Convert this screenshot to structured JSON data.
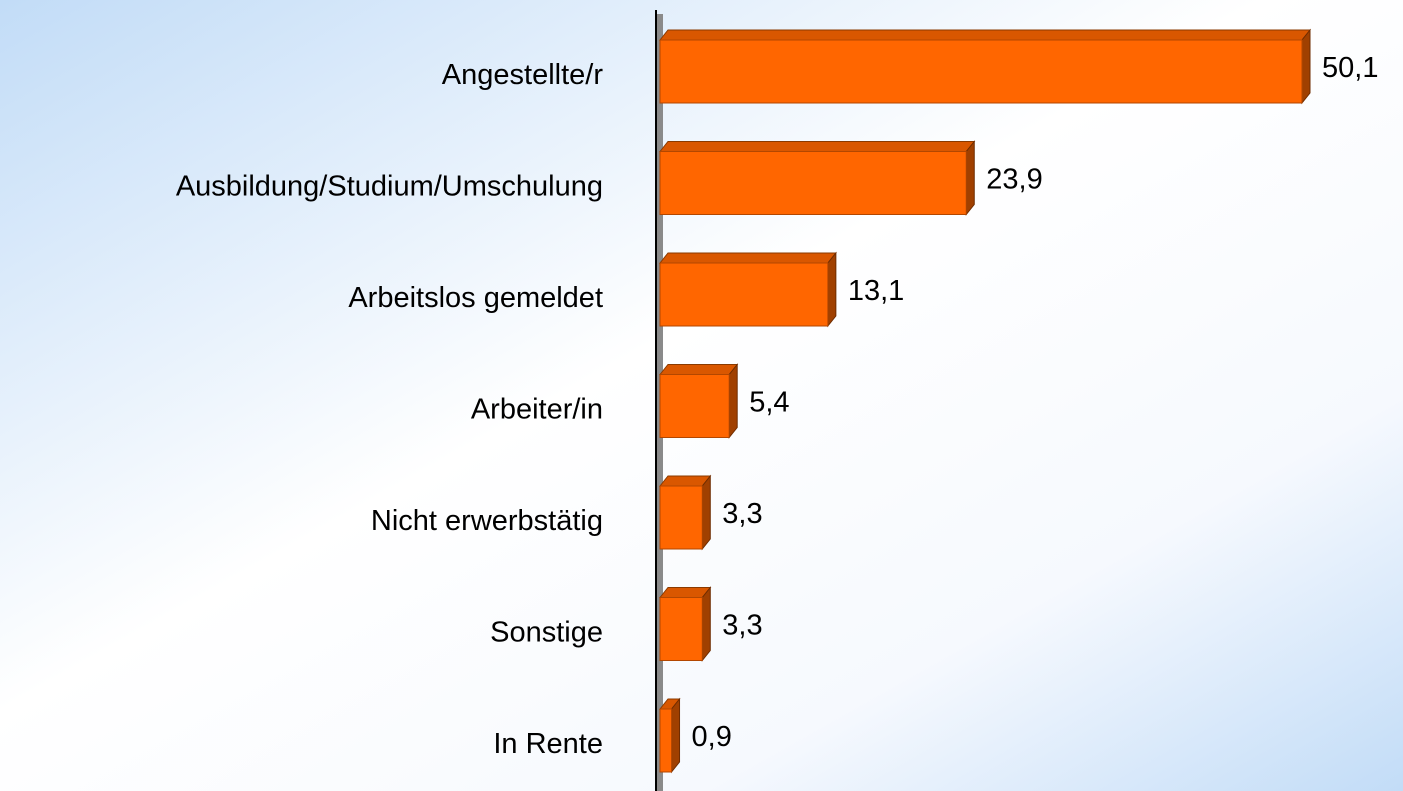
{
  "chart_data": {
    "type": "bar",
    "orientation": "horizontal",
    "categories": [
      "Angestellte/r",
      "Ausbildung/Studium/Umschulung",
      "Arbeitslos gemeldet",
      "Arbeiter/in",
      "Nicht erwerbstätig",
      "Sonstige",
      "In Rente"
    ],
    "values": [
      50.1,
      23.9,
      13.1,
      5.4,
      3.3,
      3.3,
      0.9
    ],
    "value_labels": [
      "50,1",
      "23,9",
      "13,1",
      "5,4",
      "3,3",
      "3,3",
      "0,9"
    ],
    "color": "#ff6600"
  }
}
